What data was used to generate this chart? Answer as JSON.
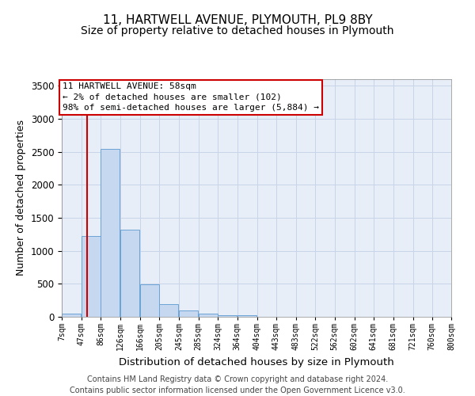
{
  "title_line1": "11, HARTWELL AVENUE, PLYMOUTH, PL9 8BY",
  "title_line2": "Size of property relative to detached houses in Plymouth",
  "xlabel": "Distribution of detached houses by size in Plymouth",
  "ylabel": "Number of detached properties",
  "bar_left_edges": [
    7,
    47,
    86,
    126,
    166,
    205,
    245,
    285,
    324,
    364,
    404,
    443,
    483,
    522,
    562,
    602,
    641,
    681,
    721,
    760
  ],
  "bar_heights": [
    50,
    1220,
    2550,
    1320,
    490,
    190,
    100,
    50,
    30,
    30,
    0,
    0,
    0,
    0,
    0,
    0,
    0,
    0,
    0,
    0
  ],
  "bin_width": 39,
  "bar_color": "#c5d8f0",
  "bar_edge_color": "#6ba3d6",
  "grid_color": "#c8d4e8",
  "background_color": "#e8eef8",
  "property_line_x": 58,
  "property_line_color": "#cc0000",
  "annotation_text": "11 HARTWELL AVENUE: 58sqm\n← 2% of detached houses are smaller (102)\n98% of semi-detached houses are larger (5,884) →",
  "annotation_box_color": "#cc0000",
  "ylim": [
    0,
    3600
  ],
  "yticks": [
    0,
    500,
    1000,
    1500,
    2000,
    2500,
    3000,
    3500
  ],
  "tick_labels": [
    "7sqm",
    "47sqm",
    "86sqm",
    "126sqm",
    "166sqm",
    "205sqm",
    "245sqm",
    "285sqm",
    "324sqm",
    "364sqm",
    "404sqm",
    "443sqm",
    "483sqm",
    "522sqm",
    "562sqm",
    "602sqm",
    "641sqm",
    "681sqm",
    "721sqm",
    "760sqm",
    "800sqm"
  ],
  "footer_line1": "Contains HM Land Registry data © Crown copyright and database right 2024.",
  "footer_line2": "Contains public sector information licensed under the Open Government Licence v3.0.",
  "title_fontsize": 11,
  "subtitle_fontsize": 10,
  "xlabel_fontsize": 9.5,
  "ylabel_fontsize": 9,
  "tick_fontsize": 7,
  "footer_fontsize": 7,
  "annotation_fontsize": 8
}
